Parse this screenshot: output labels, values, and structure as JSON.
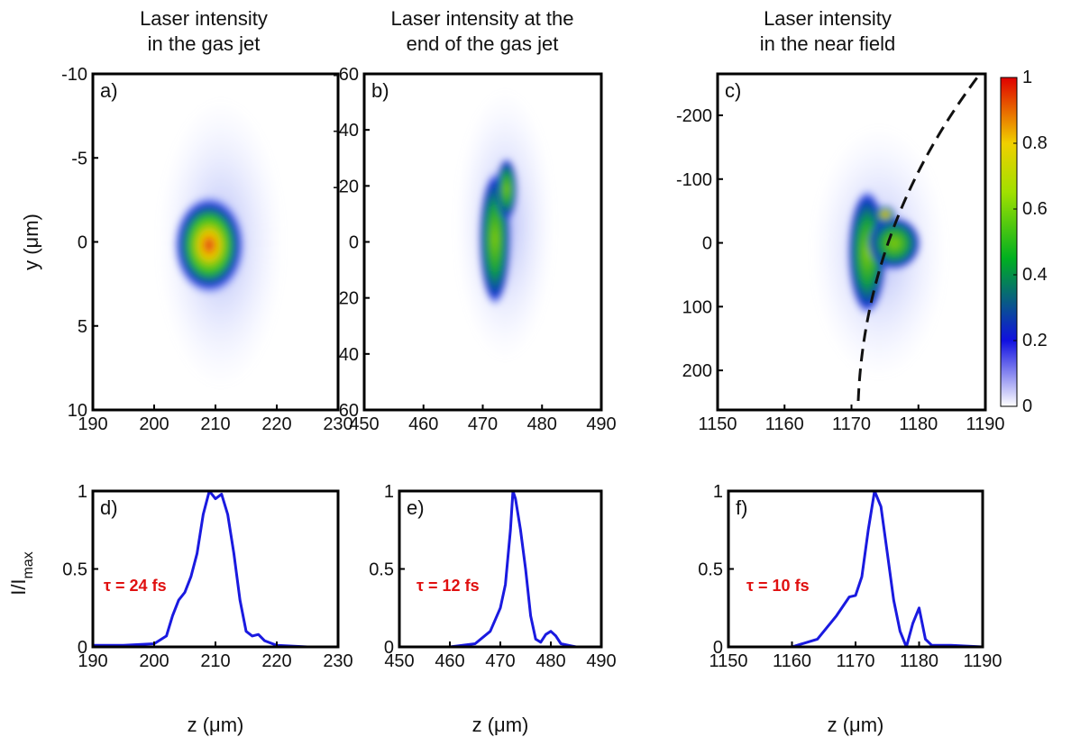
{
  "chart_data": [
    {
      "type": "heatmap",
      "title": [
        "Laser intensity",
        "in the gas jet"
      ],
      "label": "a)",
      "ylabel": "y (μm)",
      "xlim": [
        190,
        230
      ],
      "xticks": [
        190,
        200,
        210,
        220,
        230
      ],
      "ylim": [
        -10,
        10
      ],
      "yticks": [
        -10,
        -5,
        0,
        5,
        10
      ],
      "y_reversed": true
    },
    {
      "type": "heatmap",
      "title": [
        "Laser intensity at the",
        "end of the gas jet"
      ],
      "label": "b)",
      "xlim": [
        450,
        490
      ],
      "xticks": [
        450,
        460,
        470,
        480,
        490
      ],
      "ylim": [
        -60,
        60
      ],
      "yticks": [
        -60,
        -40,
        -20,
        0,
        20,
        40,
        60
      ],
      "y_reversed": true
    },
    {
      "type": "heatmap",
      "title": [
        "Laser intensity",
        "in the near field"
      ],
      "label": "c)",
      "xlim": [
        1150,
        1190
      ],
      "xticks": [
        1150,
        1160,
        1170,
        1180,
        1190
      ],
      "ylim": [
        -265,
        262
      ],
      "yticks": [
        -200,
        -100,
        0,
        100,
        200
      ],
      "y_reversed": true,
      "colorbar": {
        "lim": [
          0,
          1
        ],
        "ticks": [
          0,
          0.2,
          0.4,
          0.6,
          0.8,
          1
        ]
      }
    },
    {
      "type": "line",
      "label": "d)",
      "ylabel": {
        "text": "I/I",
        "sub": "max"
      },
      "xlabel": "z (μm)",
      "annotation": "τ = 24 fs",
      "xlim": [
        190,
        230
      ],
      "xticks": [
        190,
        200,
        210,
        220,
        230
      ],
      "ylim": [
        0,
        1
      ],
      "yticks": [
        0,
        0.5,
        1
      ],
      "x": [
        190,
        195,
        200,
        202,
        203,
        204,
        205,
        206,
        207,
        208,
        209,
        210,
        211,
        212,
        213,
        214,
        215,
        216,
        217,
        218,
        220,
        225,
        230
      ],
      "series": [
        {
          "color": "#1a1ae0",
          "values": [
            0.01,
            0.01,
            0.02,
            0.07,
            0.2,
            0.3,
            0.35,
            0.45,
            0.6,
            0.85,
            1.0,
            0.95,
            0.98,
            0.85,
            0.6,
            0.3,
            0.1,
            0.07,
            0.08,
            0.04,
            0.01,
            0.0,
            0.0
          ]
        }
      ]
    },
    {
      "type": "line",
      "label": "e)",
      "xlabel": "z (μm)",
      "annotation": "τ = 12 fs",
      "xlim": [
        450,
        490
      ],
      "xticks": [
        450,
        460,
        470,
        480,
        490
      ],
      "ylim": [
        0,
        1
      ],
      "yticks": [
        0,
        0.5,
        1
      ],
      "x": [
        450,
        460,
        465,
        468,
        470,
        471,
        472,
        472.5,
        473,
        474,
        475,
        476,
        477,
        478,
        479,
        480,
        481,
        482,
        485,
        490
      ],
      "series": [
        {
          "color": "#1a1ae0",
          "values": [
            0,
            0,
            0.02,
            0.1,
            0.25,
            0.4,
            0.75,
            1.0,
            0.95,
            0.75,
            0.5,
            0.2,
            0.05,
            0.03,
            0.08,
            0.1,
            0.07,
            0.02,
            0,
            0
          ]
        }
      ]
    },
    {
      "type": "line",
      "label": "f)",
      "xlabel": "z (μm)",
      "annotation": "τ = 10 fs",
      "xlim": [
        1150,
        1190
      ],
      "xticks": [
        1150,
        1160,
        1170,
        1180,
        1190
      ],
      "ylim": [
        0,
        1
      ],
      "yticks": [
        0,
        0.5,
        1
      ],
      "x": [
        1150,
        1160,
        1164,
        1167,
        1169,
        1170,
        1171,
        1172,
        1173,
        1174,
        1175,
        1176,
        1177,
        1178,
        1179,
        1180,
        1181,
        1182,
        1185,
        1190
      ],
      "series": [
        {
          "color": "#1a1ae0",
          "values": [
            0,
            0,
            0.05,
            0.2,
            0.32,
            0.33,
            0.45,
            0.75,
            1.0,
            0.9,
            0.6,
            0.3,
            0.1,
            0.0,
            0.15,
            0.25,
            0.05,
            0.01,
            0.01,
            0
          ]
        }
      ]
    }
  ]
}
